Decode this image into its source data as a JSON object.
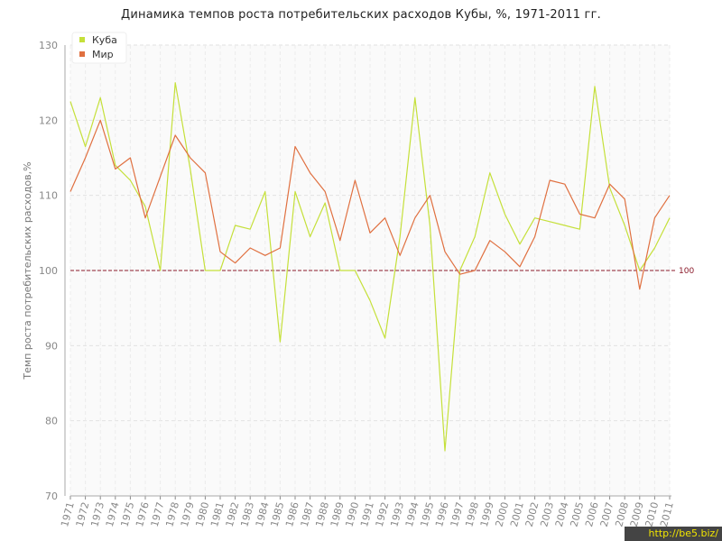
{
  "chart_data": {
    "type": "line",
    "title": "Динамика темпов роста потребительских расходов Кубы, %, 1971-2011 гг.",
    "xlabel": "",
    "ylabel": "Темп роста потребительских расходов,%",
    "categories": [
      "1971",
      "1972",
      "1973",
      "1974",
      "1975",
      "1976",
      "1977",
      "1978",
      "1979",
      "1980",
      "1981",
      "1982",
      "1983",
      "1984",
      "1985",
      "1986",
      "1987",
      "1988",
      "1989",
      "1990",
      "1991",
      "1992",
      "1993",
      "1994",
      "1995",
      "1996",
      "1997",
      "1998",
      "1999",
      "2000",
      "2001",
      "2002",
      "2003",
      "2004",
      "2005",
      "2006",
      "2007",
      "2008",
      "2009",
      "2010",
      "2011"
    ],
    "ylim": [
      70,
      130
    ],
    "yticks": [
      70,
      80,
      90,
      100,
      110,
      120,
      130
    ],
    "grid": true,
    "legend_position": "top-left",
    "series": [
      {
        "name": "Куба",
        "color": "#c5e03a",
        "values": [
          122.5,
          116.5,
          123.0,
          114.0,
          112.0,
          108.5,
          100.0,
          125.0,
          113.5,
          100.0,
          100.0,
          106.0,
          105.5,
          110.5,
          90.5,
          110.5,
          104.5,
          109.0,
          100.0,
          100.0,
          96.0,
          91.0,
          104.5,
          123.0,
          106.0,
          76.0,
          100.0,
          104.5,
          113.0,
          107.5,
          103.5,
          107.0,
          106.5,
          106.0,
          105.5,
          124.5,
          111.0,
          106.0,
          100.0,
          103.0,
          107.0
        ]
      },
      {
        "name": "Мир",
        "color": "#e07040",
        "values": [
          110.5,
          115.0,
          120.0,
          113.5,
          115.0,
          107.0,
          112.5,
          118.0,
          115.0,
          113.0,
          102.5,
          101.0,
          103.0,
          102.0,
          103.0,
          116.5,
          113.0,
          110.5,
          104.0,
          112.0,
          105.0,
          107.0,
          102.0,
          107.0,
          110.0,
          102.5,
          99.5,
          100.0,
          104.0,
          102.5,
          100.5,
          104.5,
          112.0,
          111.5,
          107.5,
          107.0,
          111.5,
          109.5,
          97.5,
          107.0,
          110.0
        ]
      }
    ],
    "reference_line": {
      "value": 100,
      "label": "100",
      "color": "#8b1a2a"
    }
  },
  "watermark": "http://be5.biz/"
}
